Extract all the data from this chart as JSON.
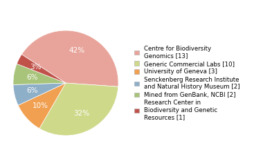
{
  "labels": [
    "Centre for Biodiversity\nGenomics [13]",
    "Generic Commercial Labs [10]",
    "University of Geneva [3]",
    "Senckenberg Research Institute\nand Natural History Museum [2]",
    "Mined from GenBank, NCBI [2]",
    "Research Center in\nBiodiversity and Genetic\nResources [1]"
  ],
  "values": [
    13,
    10,
    3,
    2,
    2,
    1
  ],
  "colors": [
    "#e8a49a",
    "#cfd98a",
    "#f0a050",
    "#8eafc8",
    "#a8c47a",
    "#c0524a"
  ],
  "text_color": "white",
  "startangle": 147,
  "legend_fontsize": 6.2
}
